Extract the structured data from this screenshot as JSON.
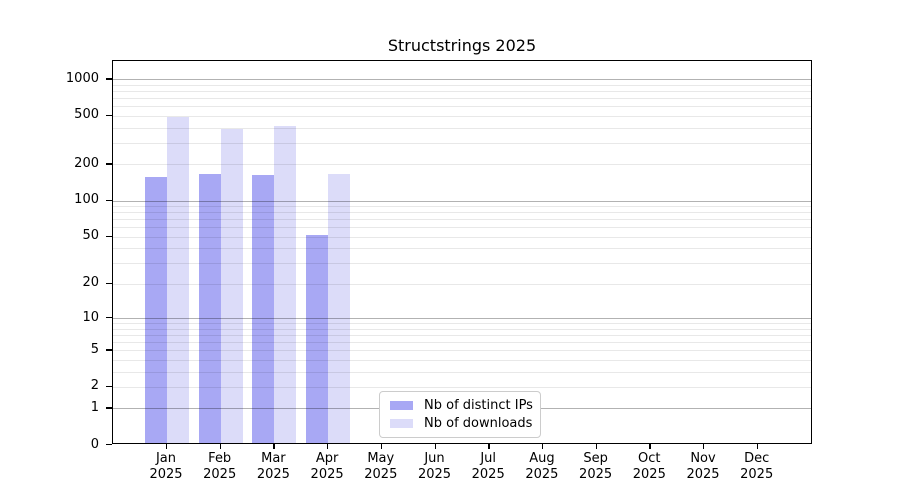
{
  "title": "Structstrings 2025",
  "legend": {
    "items": [
      {
        "label": "Nb of distinct IPs",
        "color": "#a8a8f4"
      },
      {
        "label": "Nb of downloads",
        "color": "#dcdcf9"
      }
    ]
  },
  "chart_data": {
    "type": "bar",
    "title": "Structstrings 2025",
    "categories": [
      "Jan",
      "Feb",
      "Mar",
      "Apr",
      "May",
      "Jun",
      "Jul",
      "Aug",
      "Sep",
      "Oct",
      "Nov",
      "Dec"
    ],
    "category_sublabel": "2025",
    "series": [
      {
        "name": "Nb of distinct IPs",
        "color": "#a8a8f4",
        "values": [
          150,
          160,
          157,
          50,
          null,
          null,
          null,
          null,
          null,
          null,
          null,
          null
        ]
      },
      {
        "name": "Nb of downloads",
        "color": "#dcdcf9",
        "values": [
          470,
          375,
          400,
          159,
          null,
          null,
          null,
          null,
          null,
          null,
          null,
          null
        ]
      }
    ],
    "y_ticks": [
      0,
      1,
      2,
      5,
      10,
      20,
      50,
      100,
      200,
      500,
      1000
    ],
    "y_major_grid": [
      1,
      10,
      100,
      1000
    ],
    "y_scale": "log10(value+1)",
    "ylim": [
      0,
      1412
    ],
    "grid": true,
    "legend_position": "lower center"
  }
}
